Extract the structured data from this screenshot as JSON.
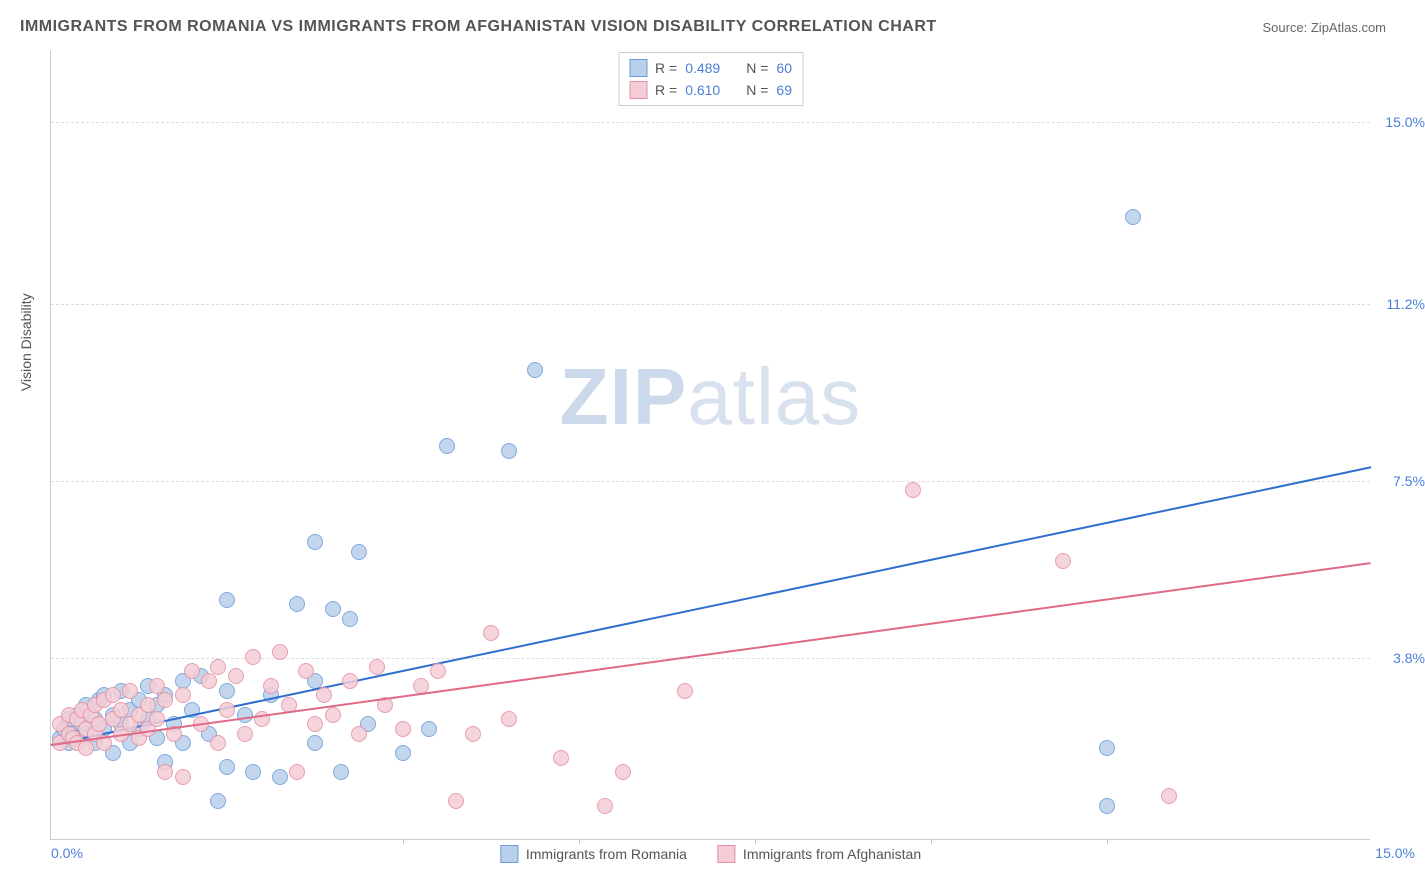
{
  "title": "IMMIGRANTS FROM ROMANIA VS IMMIGRANTS FROM AFGHANISTAN VISION DISABILITY CORRELATION CHART",
  "source_label": "Source: ZipAtlas.com",
  "ylabel": "Vision Disability",
  "watermark_bold": "ZIP",
  "watermark_rest": "atlas",
  "chart": {
    "type": "scatter",
    "xlim": [
      0,
      15
    ],
    "ylim": [
      0,
      16.5
    ],
    "x_ticks_minor": [
      4.0,
      6.0,
      8.0,
      10.0,
      12.0
    ],
    "x_tick_labels": [
      {
        "pos": 0,
        "label": "0.0%",
        "align": "left"
      },
      {
        "pos": 15,
        "label": "15.0%",
        "align": "right"
      }
    ],
    "y_gridlines": [
      3.8,
      7.5,
      11.2,
      15.0
    ],
    "y_tick_labels": [
      "3.8%",
      "7.5%",
      "11.2%",
      "15.0%"
    ],
    "background_color": "#ffffff",
    "grid_color": "#dddddd",
    "marker_radius": 8,
    "series": [
      {
        "name": "Immigrants from Romania",
        "fill": "#b9d0ec",
        "stroke": "#6a9bd8",
        "line_color": "#2f6fd0",
        "R": "0.489",
        "N": "60",
        "trend": {
          "x1": 0,
          "y1": 2.0,
          "x2": 15,
          "y2": 7.8
        },
        "points": [
          [
            0.1,
            2.1
          ],
          [
            0.15,
            2.3
          ],
          [
            0.2,
            2.0
          ],
          [
            0.2,
            2.5
          ],
          [
            0.25,
            2.2
          ],
          [
            0.3,
            2.6
          ],
          [
            0.3,
            2.1
          ],
          [
            0.35,
            2.4
          ],
          [
            0.4,
            2.8
          ],
          [
            0.4,
            2.2
          ],
          [
            0.5,
            2.0
          ],
          [
            0.5,
            2.5
          ],
          [
            0.55,
            2.9
          ],
          [
            0.6,
            2.3
          ],
          [
            0.6,
            3.0
          ],
          [
            0.7,
            2.6
          ],
          [
            0.7,
            1.8
          ],
          [
            0.8,
            2.4
          ],
          [
            0.8,
            3.1
          ],
          [
            0.9,
            2.7
          ],
          [
            0.9,
            2.0
          ],
          [
            1.0,
            2.9
          ],
          [
            1.0,
            2.3
          ],
          [
            1.1,
            3.2
          ],
          [
            1.1,
            2.5
          ],
          [
            1.2,
            2.1
          ],
          [
            1.2,
            2.8
          ],
          [
            1.3,
            3.0
          ],
          [
            1.3,
            1.6
          ],
          [
            1.4,
            2.4
          ],
          [
            1.5,
            3.3
          ],
          [
            1.5,
            2.0
          ],
          [
            1.6,
            2.7
          ],
          [
            1.7,
            3.4
          ],
          [
            1.8,
            2.2
          ],
          [
            1.9,
            0.8
          ],
          [
            2.0,
            3.1
          ],
          [
            2.0,
            1.5
          ],
          [
            2.0,
            5.0
          ],
          [
            2.2,
            2.6
          ],
          [
            2.3,
            1.4
          ],
          [
            2.5,
            3.0
          ],
          [
            2.6,
            1.3
          ],
          [
            2.8,
            4.9
          ],
          [
            3.0,
            2.0
          ],
          [
            3.0,
            3.3
          ],
          [
            3.0,
            6.2
          ],
          [
            3.2,
            4.8
          ],
          [
            3.3,
            1.4
          ],
          [
            3.4,
            4.6
          ],
          [
            3.5,
            6.0
          ],
          [
            3.6,
            2.4
          ],
          [
            4.0,
            1.8
          ],
          [
            4.3,
            2.3
          ],
          [
            4.5,
            8.2
          ],
          [
            5.2,
            8.1
          ],
          [
            5.5,
            9.8
          ],
          [
            12.0,
            1.9
          ],
          [
            12.0,
            0.7
          ],
          [
            12.3,
            13.0
          ]
        ]
      },
      {
        "name": "Immigrants from Afghanistan",
        "fill": "#f5cdd6",
        "stroke": "#e38fa3",
        "line_color": "#e06a86",
        "R": "0.610",
        "N": "69",
        "trend": {
          "x1": 0,
          "y1": 2.0,
          "x2": 15,
          "y2": 5.8
        },
        "points": [
          [
            0.1,
            2.0
          ],
          [
            0.1,
            2.4
          ],
          [
            0.2,
            2.2
          ],
          [
            0.2,
            2.6
          ],
          [
            0.25,
            2.1
          ],
          [
            0.3,
            2.5
          ],
          [
            0.3,
            2.0
          ],
          [
            0.35,
            2.7
          ],
          [
            0.4,
            2.3
          ],
          [
            0.4,
            1.9
          ],
          [
            0.45,
            2.6
          ],
          [
            0.5,
            2.2
          ],
          [
            0.5,
            2.8
          ],
          [
            0.55,
            2.4
          ],
          [
            0.6,
            2.0
          ],
          [
            0.6,
            2.9
          ],
          [
            0.7,
            2.5
          ],
          [
            0.7,
            3.0
          ],
          [
            0.8,
            2.2
          ],
          [
            0.8,
            2.7
          ],
          [
            0.9,
            2.4
          ],
          [
            0.9,
            3.1
          ],
          [
            1.0,
            2.6
          ],
          [
            1.0,
            2.1
          ],
          [
            1.1,
            2.8
          ],
          [
            1.1,
            2.3
          ],
          [
            1.2,
            3.2
          ],
          [
            1.2,
            2.5
          ],
          [
            1.3,
            2.9
          ],
          [
            1.3,
            1.4
          ],
          [
            1.4,
            2.2
          ],
          [
            1.5,
            3.0
          ],
          [
            1.5,
            1.3
          ],
          [
            1.6,
            3.5
          ],
          [
            1.7,
            2.4
          ],
          [
            1.8,
            3.3
          ],
          [
            1.9,
            2.0
          ],
          [
            1.9,
            3.6
          ],
          [
            2.0,
            2.7
          ],
          [
            2.1,
            3.4
          ],
          [
            2.2,
            2.2
          ],
          [
            2.3,
            3.8
          ],
          [
            2.4,
            2.5
          ],
          [
            2.5,
            3.2
          ],
          [
            2.6,
            3.9
          ],
          [
            2.7,
            2.8
          ],
          [
            2.8,
            1.4
          ],
          [
            2.9,
            3.5
          ],
          [
            3.0,
            2.4
          ],
          [
            3.1,
            3.0
          ],
          [
            3.2,
            2.6
          ],
          [
            3.4,
            3.3
          ],
          [
            3.5,
            2.2
          ],
          [
            3.7,
            3.6
          ],
          [
            3.8,
            2.8
          ],
          [
            4.0,
            2.3
          ],
          [
            4.2,
            3.2
          ],
          [
            4.4,
            3.5
          ],
          [
            4.6,
            0.8
          ],
          [
            4.8,
            2.2
          ],
          [
            5.0,
            4.3
          ],
          [
            5.2,
            2.5
          ],
          [
            5.8,
            1.7
          ],
          [
            6.3,
            0.7
          ],
          [
            6.5,
            1.4
          ],
          [
            7.2,
            3.1
          ],
          [
            9.8,
            7.3
          ],
          [
            11.5,
            5.8
          ],
          [
            12.7,
            0.9
          ]
        ]
      }
    ]
  },
  "legend_top": {
    "r_label": "R =",
    "n_label": "N ="
  },
  "legend_bottom_labels": [
    "Immigrants from Romania",
    "Immigrants from Afghanistan"
  ]
}
